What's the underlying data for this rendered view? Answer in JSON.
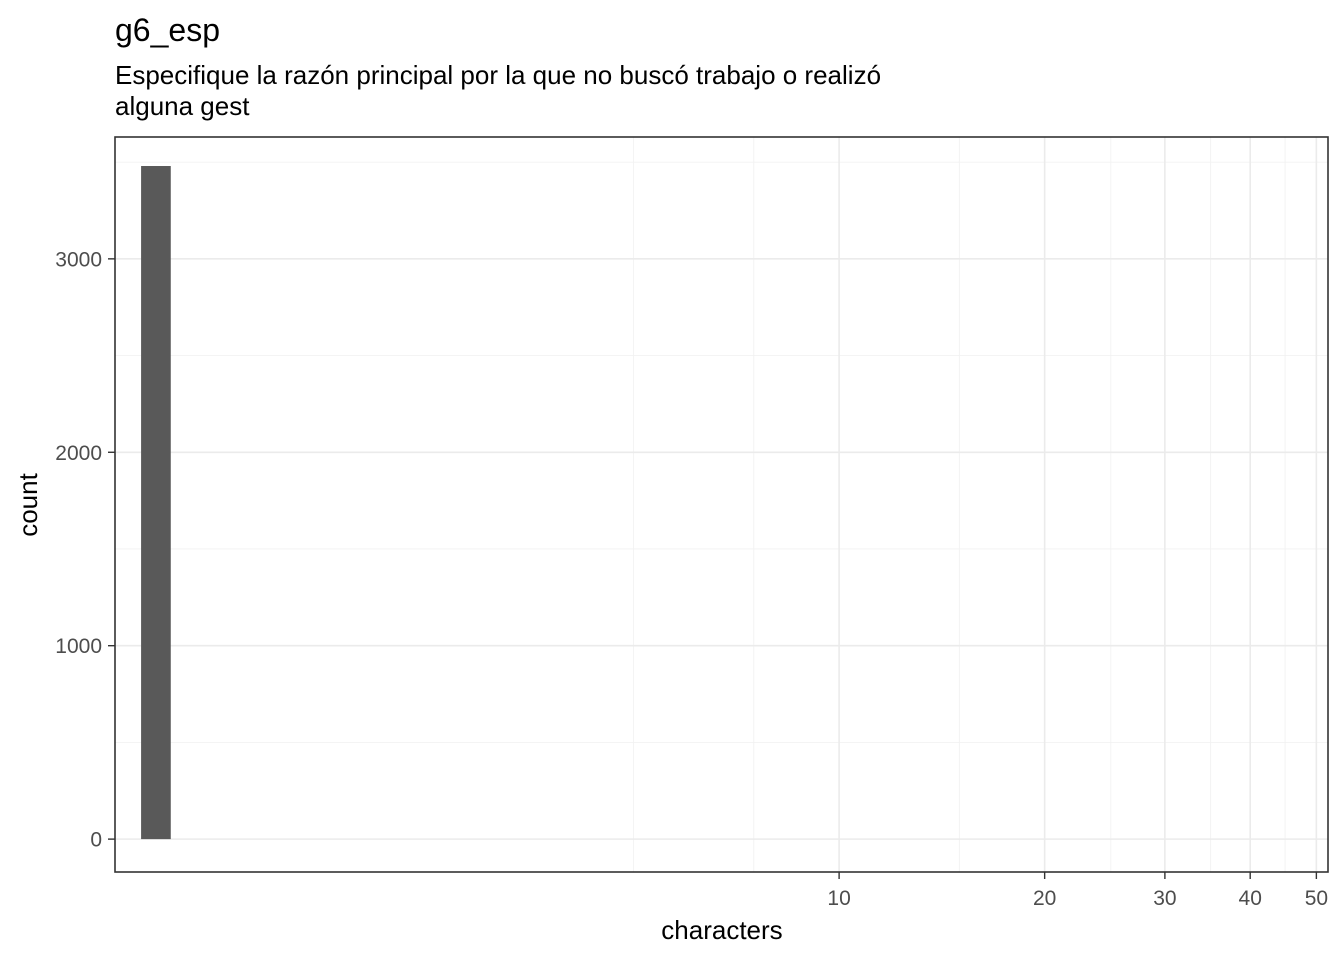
{
  "chart_data": {
    "type": "bar",
    "title": "g6_esp",
    "subtitle_lines": [
      "Especifique la razón principal por la que no buscó trabajo o realizó",
      "alguna gest"
    ],
    "xlabel": "characters",
    "ylabel": "count",
    "x_scale": "log10",
    "xlim": [
      0.87,
      52
    ],
    "ylim": [
      -170,
      3630
    ],
    "x_ticks": [
      10,
      20,
      30,
      40,
      50
    ],
    "x_minor_gridlines": [
      5,
      7.5,
      15,
      25,
      35,
      45
    ],
    "y_ticks": [
      0,
      1000,
      2000,
      3000
    ],
    "y_minor_gridlines": [
      500,
      1500,
      2500,
      3500
    ],
    "grid": true,
    "bars": [
      {
        "x_start": 0.95,
        "x_end": 1.05,
        "count": 3480
      }
    ],
    "bar_color": "#595959"
  }
}
